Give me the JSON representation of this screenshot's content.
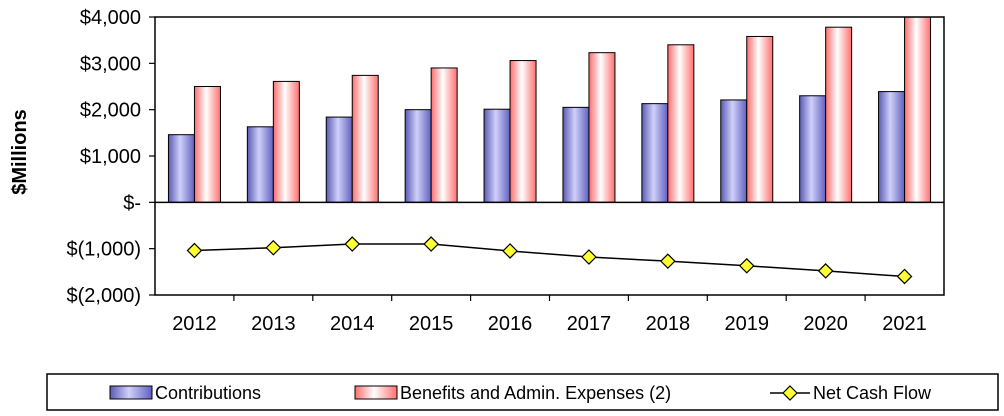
{
  "chart_data": {
    "type": "bar",
    "categories": [
      "2012",
      "2013",
      "2014",
      "2015",
      "2016",
      "2017",
      "2018",
      "2019",
      "2020",
      "2021"
    ],
    "series": [
      {
        "name": "Contributions",
        "kind": "bar",
        "color": "#8080e0",
        "values": [
          1460,
          1630,
          1840,
          2000,
          2010,
          2050,
          2130,
          2210,
          2300,
          2390
        ]
      },
      {
        "name": "Benefits and Admin. Expenses (2)",
        "kind": "bar",
        "color": "#ff8c8c",
        "values": [
          2500,
          2610,
          2740,
          2900,
          3060,
          3230,
          3400,
          3580,
          3780,
          4000
        ]
      },
      {
        "name": "Net Cash Flow",
        "kind": "line",
        "color": "#ffff33",
        "values": [
          -1040,
          -980,
          -900,
          -900,
          -1050,
          -1180,
          -1270,
          -1370,
          -1480,
          -1600
        ]
      }
    ],
    "yticks": [
      4000,
      3000,
      2000,
      1000,
      0,
      -1000,
      -2000
    ],
    "ytick_labels": [
      "$4,000",
      "$3,000",
      "$2,000",
      "$1,000",
      "$-",
      "$(1,000)",
      "$(2,000)"
    ],
    "ylabel": "$Millions",
    "xlabel": "",
    "ylim": [
      -2000,
      4000
    ],
    "legend_position": "bottom",
    "grid": false
  }
}
